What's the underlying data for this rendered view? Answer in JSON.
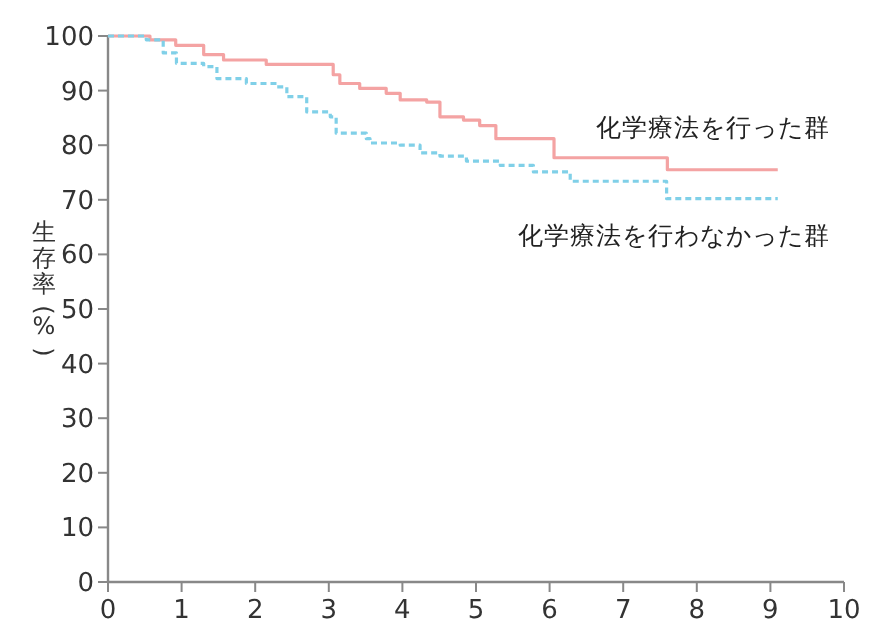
{
  "chart_data": {
    "type": "step",
    "ylabel": "生存率(%)",
    "xlim": [
      0,
      10
    ],
    "ylim": [
      0,
      100
    ],
    "xticks": [
      0,
      1,
      2,
      3,
      4,
      5,
      6,
      7,
      8,
      9,
      10
    ],
    "yticks": [
      0,
      10,
      20,
      30,
      40,
      50,
      60,
      70,
      80,
      90,
      100
    ],
    "grid": false,
    "marker": "none",
    "series": [
      {
        "name": "化学療法を行った群",
        "color": "#f4a3a3",
        "line_style": "solid",
        "x": [
          0,
          0.57,
          0.92,
          1.3,
          1.57,
          2.15,
          3.06,
          3.15,
          3.42,
          3.78,
          3.97,
          4.33,
          4.51,
          4.83,
          5.05,
          5.27,
          6.06,
          7.6,
          9.1
        ],
        "values": [
          100,
          99.3,
          98.3,
          96.6,
          95.6,
          94.8,
          92.9,
          91.3,
          90.4,
          89.5,
          88.3,
          87.9,
          85.2,
          84.6,
          83.6,
          81.2,
          77.7,
          75.5,
          75.5
        ]
      },
      {
        "name": "化学療法を行わなかった群",
        "color": "#80d0e8",
        "line_style": "dashed",
        "x": [
          0,
          0.52,
          0.75,
          0.93,
          1.3,
          1.48,
          1.88,
          2.29,
          2.43,
          2.7,
          3.02,
          3.1,
          3.51,
          3.56,
          3.97,
          4.24,
          4.51,
          4.87,
          5.33,
          5.78,
          6.28,
          7.59,
          9.1
        ],
        "values": [
          100,
          99.3,
          96.9,
          95,
          94.4,
          92.2,
          91.3,
          90.7,
          88.9,
          86.1,
          85.2,
          82.2,
          81.2,
          80.4,
          80,
          78.6,
          78,
          77.1,
          76.3,
          75.1,
          73.4,
          70.2,
          70.2
        ]
      }
    ]
  }
}
